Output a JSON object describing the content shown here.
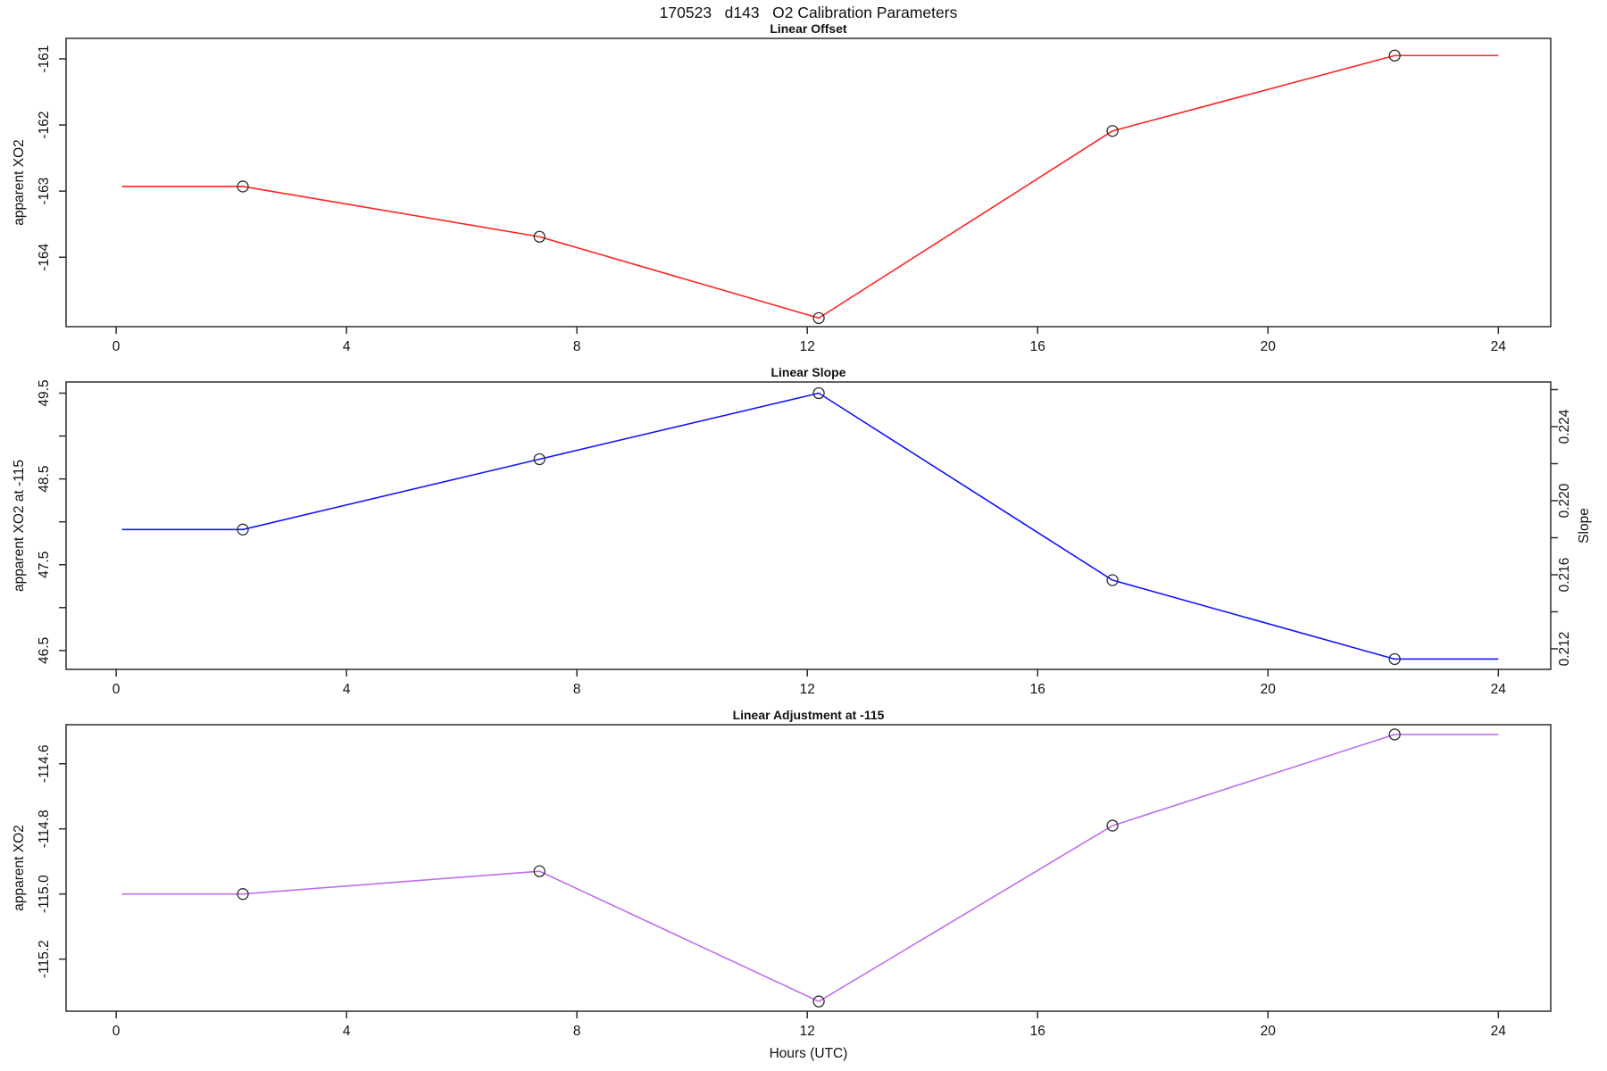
{
  "page_title": "170523   d143   O2 Calibration Parameters",
  "x_axis": {
    "label": "Hours (UTC)",
    "ticks": [
      0,
      4,
      8,
      12,
      16,
      20,
      24
    ],
    "lim": [
      -0.87,
      24.91
    ]
  },
  "colors": {
    "offset_line": "#ff2222",
    "slope_line": "#1414ff",
    "adjustment_line": "#be6eec",
    "marker_stroke": "#2e2e2e",
    "frame": "#2e2e2e"
  },
  "chart_data": [
    {
      "type": "line",
      "title": "Linear Offset",
      "ylabel": "apparent XO2",
      "ylim": [
        -165.05,
        -160.69
      ],
      "y_ticks": [
        {
          "value": -161,
          "label": "-161"
        },
        {
          "value": -162,
          "label": "-162"
        },
        {
          "value": -163,
          "label": "-163"
        },
        {
          "value": -164,
          "label": "-164"
        }
      ],
      "points": [
        {
          "hour": 0.1,
          "value": -162.93,
          "marker": false
        },
        {
          "hour": 2.2,
          "value": -162.93,
          "marker": true
        },
        {
          "hour": 7.35,
          "value": -163.69,
          "marker": true
        },
        {
          "hour": 12.2,
          "value": -164.92,
          "marker": true
        },
        {
          "hour": 17.3,
          "value": -162.09,
          "marker": true
        },
        {
          "hour": 22.2,
          "value": -160.95,
          "marker": true
        },
        {
          "hour": 24.0,
          "value": -160.95,
          "marker": false
        }
      ]
    },
    {
      "type": "line",
      "title": "Linear Slope",
      "ylabel": "apparent XO2 at -115",
      "ylim": [
        46.28,
        49.63
      ],
      "y_ticks": [
        {
          "value": 49.5,
          "label": "49.5"
        },
        {
          "value": 49.0,
          "label": ""
        },
        {
          "value": 48.5,
          "label": "48.5"
        },
        {
          "value": 48.0,
          "label": ""
        },
        {
          "value": 47.5,
          "label": "47.5"
        },
        {
          "value": 47.0,
          "label": ""
        },
        {
          "value": 46.5,
          "label": "46.5"
        }
      ],
      "right_axis": {
        "label": "Slope",
        "lim": [
          0.21089,
          0.22641
        ],
        "ticks": [
          {
            "value": 0.226,
            "label": ""
          },
          {
            "value": 0.224,
            "label": "0.224"
          },
          {
            "value": 0.222,
            "label": ""
          },
          {
            "value": 0.22,
            "label": "0.220"
          },
          {
            "value": 0.218,
            "label": ""
          },
          {
            "value": 0.216,
            "label": "0.216"
          },
          {
            "value": 0.214,
            "label": ""
          },
          {
            "value": 0.212,
            "label": "0.212"
          }
        ]
      },
      "points": [
        {
          "hour": 0.1,
          "value": 47.91,
          "marker": false
        },
        {
          "hour": 2.2,
          "value": 47.91,
          "marker": true
        },
        {
          "hour": 7.35,
          "value": 48.73,
          "marker": true
        },
        {
          "hour": 12.2,
          "value": 49.5,
          "marker": true
        },
        {
          "hour": 17.3,
          "value": 47.32,
          "marker": true
        },
        {
          "hour": 22.2,
          "value": 46.4,
          "marker": true
        },
        {
          "hour": 24.0,
          "value": 46.4,
          "marker": false
        }
      ]
    },
    {
      "type": "line",
      "title": "Linear Adjustment at -115",
      "ylabel": "apparent XO2",
      "xlabel": "Hours (UTC)",
      "ylim": [
        -115.36,
        -114.48
      ],
      "y_ticks": [
        {
          "value": -114.6,
          "label": "-114.6"
        },
        {
          "value": -114.8,
          "label": "-114.8"
        },
        {
          "value": -115.0,
          "label": "-115.0"
        },
        {
          "value": -115.2,
          "label": "-115.2"
        }
      ],
      "points": [
        {
          "hour": 0.1,
          "value": -115.0,
          "marker": false
        },
        {
          "hour": 2.2,
          "value": -115.0,
          "marker": true
        },
        {
          "hour": 7.35,
          "value": -114.93,
          "marker": true
        },
        {
          "hour": 12.2,
          "value": -115.33,
          "marker": true
        },
        {
          "hour": 17.3,
          "value": -114.79,
          "marker": true
        },
        {
          "hour": 22.2,
          "value": -114.51,
          "marker": true
        },
        {
          "hour": 24.0,
          "value": -114.51,
          "marker": false
        }
      ]
    }
  ]
}
